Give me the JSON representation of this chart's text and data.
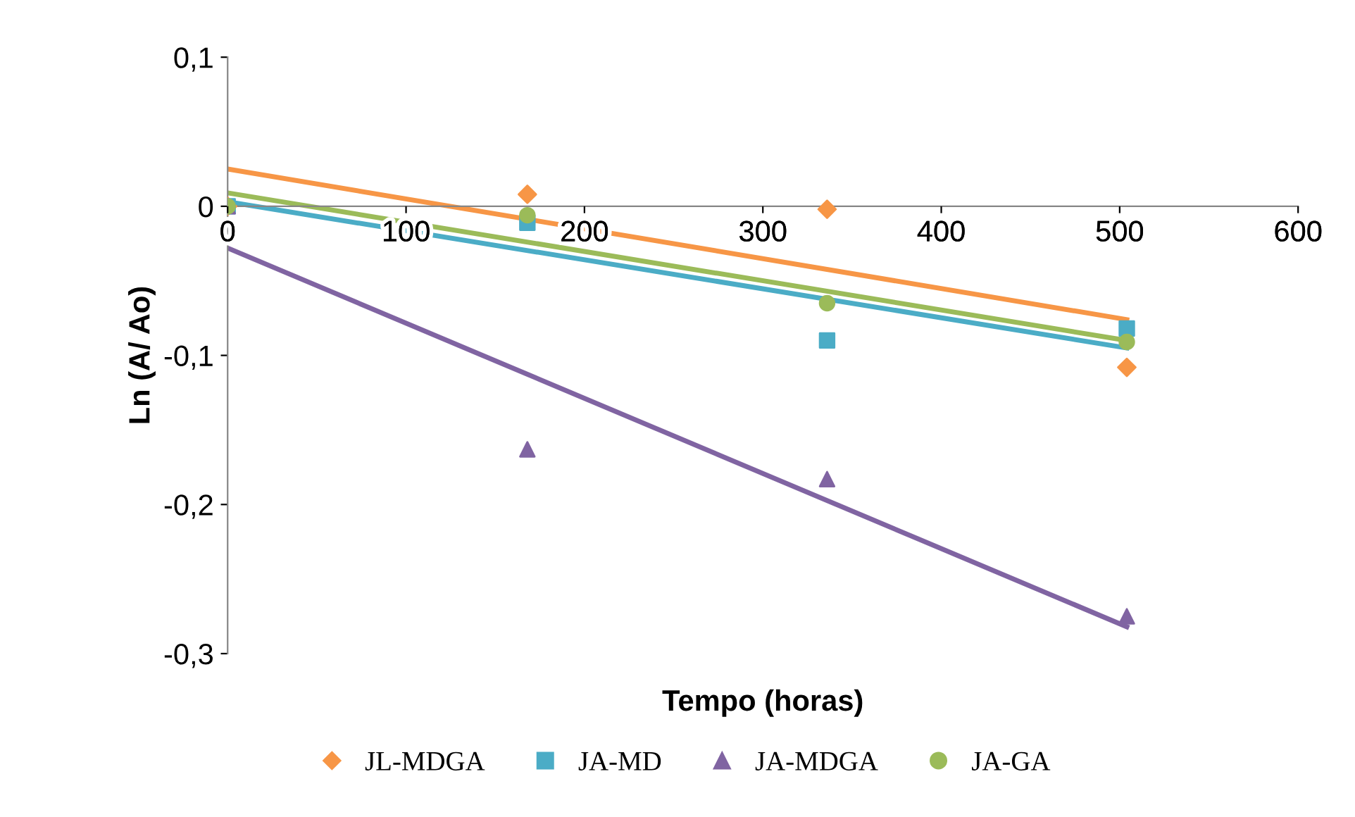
{
  "chart_data": {
    "type": "scatter",
    "xlabel": "Tempo (horas)",
    "ylabel": "Ln (A/ Ao)",
    "series": [
      {
        "name": "JL-MDGA",
        "color": "#f79646",
        "marker": "diamond",
        "x": [
          0,
          168,
          336,
          504
        ],
        "values": [
          0,
          0.008,
          -0.002,
          -0.108
        ]
      },
      {
        "name": "JA-MD",
        "color": "#4bacc6",
        "marker": "square",
        "x": [
          0,
          168,
          336,
          504
        ],
        "values": [
          0,
          -0.011,
          -0.09,
          -0.082
        ]
      },
      {
        "name": "JA-MDGA",
        "color": "#8064a2",
        "marker": "triangle",
        "x": [
          0,
          168,
          336,
          504
        ],
        "values": [
          0,
          -0.163,
          -0.183,
          -0.275
        ]
      },
      {
        "name": "JA-GA",
        "color": "#9bbb59",
        "marker": "circle",
        "x": [
          0,
          168,
          336,
          504
        ],
        "values": [
          0,
          -0.006,
          -0.065,
          -0.091
        ]
      },
      {
        "type": "line",
        "color": "#f79646",
        "x": [
          0,
          504
        ],
        "values": [
          0.025,
          -0.076
        ]
      },
      {
        "type": "line",
        "color": "#4bacc6",
        "x": [
          0,
          504
        ],
        "values": [
          0.003,
          -0.095
        ]
      },
      {
        "type": "line",
        "color": "#8064a2",
        "x": [
          0,
          504
        ],
        "values": [
          -0.028,
          -0.282
        ]
      },
      {
        "type": "line",
        "color": "#9bbb59",
        "x": [
          0,
          504
        ],
        "values": [
          0.009,
          -0.09
        ]
      }
    ],
    "xlim": [
      0,
      600
    ],
    "xticks": [
      0,
      100,
      200,
      300,
      400,
      500,
      600
    ],
    "ylim": [
      -0.3,
      0.1
    ],
    "yticks": [
      {
        "value": -0.3,
        "label": "-0,3"
      },
      {
        "value": -0.2,
        "label": "-0,2"
      },
      {
        "value": -0.1,
        "label": "-0,1"
      },
      {
        "value": 0,
        "label": "0"
      },
      {
        "value": 0.1,
        "label": "0,1"
      }
    ],
    "grid": false,
    "legend": "bottom"
  }
}
